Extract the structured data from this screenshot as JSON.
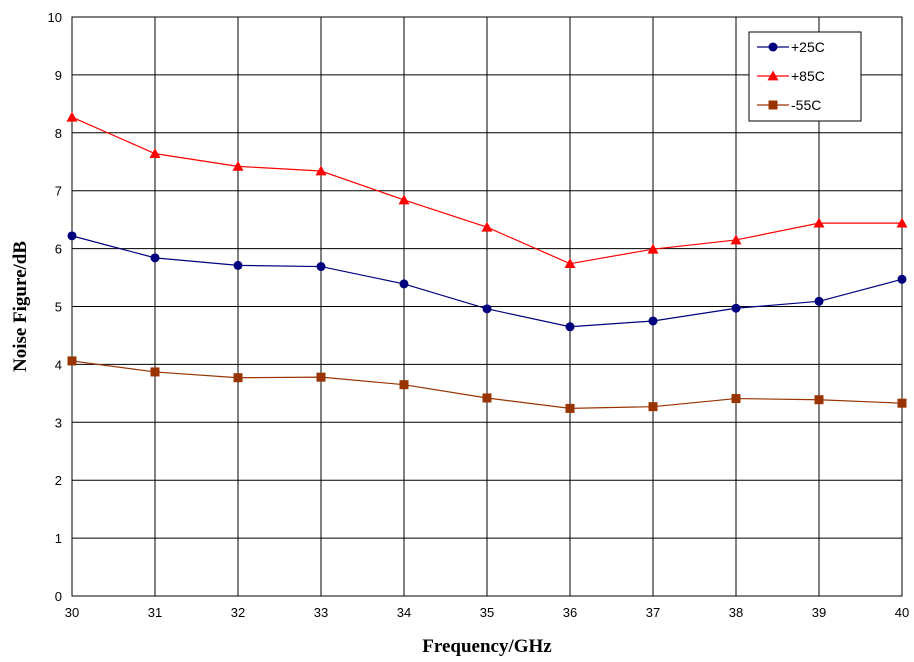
{
  "chart_data": {
    "type": "line",
    "title": "",
    "xlabel": "Frequency/GHz",
    "ylabel": "Noise Figure/dB",
    "x": [
      30,
      31,
      32,
      33,
      34,
      35,
      36,
      37,
      38,
      39,
      40
    ],
    "xlim": [
      30,
      40
    ],
    "ylim": [
      0,
      10
    ],
    "xticks": [
      "30",
      "31",
      "32",
      "33",
      "34",
      "35",
      "36",
      "37",
      "38",
      "39",
      "40"
    ],
    "yticks": [
      "0",
      "1",
      "2",
      "3",
      "4",
      "5",
      "6",
      "7",
      "8",
      "9",
      "10"
    ],
    "grid": true,
    "legend_position": "top-right",
    "series": [
      {
        "name": "+25C",
        "color": "#00007f",
        "marker": "circle",
        "values": [
          6.22,
          5.84,
          5.71,
          5.69,
          5.39,
          4.96,
          4.65,
          4.75,
          4.97,
          5.09,
          5.47
        ]
      },
      {
        "name": "+85C",
        "color": "#ff0000",
        "marker": "triangle",
        "values": [
          8.27,
          7.64,
          7.42,
          7.34,
          6.84,
          6.37,
          5.74,
          5.99,
          6.15,
          6.44,
          6.44
        ]
      },
      {
        "name": "-55C",
        "color": "#993300",
        "marker": "square",
        "values": [
          4.06,
          3.87,
          3.77,
          3.78,
          3.65,
          3.42,
          3.24,
          3.27,
          3.41,
          3.39,
          3.33
        ]
      }
    ]
  }
}
